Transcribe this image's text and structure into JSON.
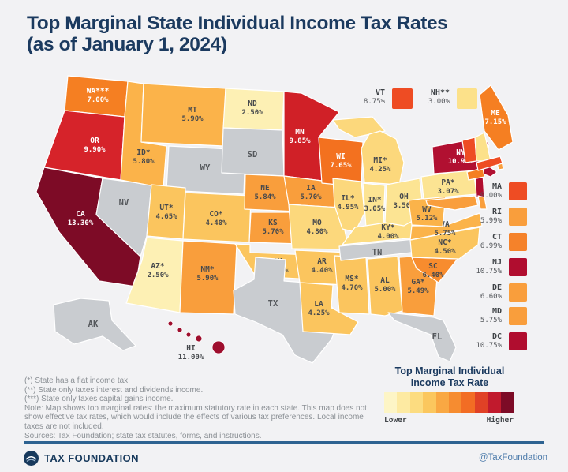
{
  "title": {
    "line1": "Top Marginal State Individual Income Tax Rates",
    "line2": "(as of January 1, 2024)"
  },
  "colors": {
    "background": "#f2f2f4",
    "title_navy": "#1b3a5f",
    "no_tax_gray": "#c9ccd0",
    "state_border": "#ffffff",
    "label_dark": "#46494d",
    "label_light": "#ffffff",
    "gray_label": "#55585c",
    "footer_line": "#2e6391",
    "handle_blue": "#4e7cab"
  },
  "map": {
    "states": [
      {
        "id": "WA",
        "label": "WA***",
        "rate": "7.00%",
        "color": "#f57f22",
        "text": "light"
      },
      {
        "id": "OR",
        "label": "OR",
        "rate": "9.90%",
        "color": "#d6232a",
        "text": "light"
      },
      {
        "id": "CA",
        "label": "CA",
        "rate": "13.30%",
        "color": "#7d0b26",
        "text": "light"
      },
      {
        "id": "NV",
        "label": "NV",
        "rate": "",
        "color": "#c9ccd0",
        "text": "gray"
      },
      {
        "id": "ID",
        "label": "ID*",
        "rate": "5.80%",
        "color": "#fbb34a",
        "text": "dark"
      },
      {
        "id": "MT",
        "label": "MT",
        "rate": "5.90%",
        "color": "#fbb34a",
        "text": "dark"
      },
      {
        "id": "WY",
        "label": "WY",
        "rate": "",
        "color": "#c9ccd0",
        "text": "gray"
      },
      {
        "id": "UT",
        "label": "UT*",
        "rate": "4.65%",
        "color": "#fbc55e",
        "text": "dark"
      },
      {
        "id": "CO",
        "label": "CO*",
        "rate": "4.40%",
        "color": "#fbc55e",
        "text": "dark"
      },
      {
        "id": "AZ",
        "label": "AZ*",
        "rate": "2.50%",
        "color": "#fdf0b4",
        "text": "dark"
      },
      {
        "id": "NM",
        "label": "NM*",
        "rate": "5.90%",
        "color": "#f99e3c",
        "text": "dark"
      },
      {
        "id": "ND",
        "label": "ND",
        "rate": "2.50%",
        "color": "#fdf0b4",
        "text": "dark"
      },
      {
        "id": "SD",
        "label": "SD",
        "rate": "",
        "color": "#c9ccd0",
        "text": "gray"
      },
      {
        "id": "NE",
        "label": "NE",
        "rate": "5.84%",
        "color": "#f99e3c",
        "text": "dark"
      },
      {
        "id": "KS",
        "label": "KS",
        "rate": "5.70%",
        "color": "#f99e3c",
        "text": "dark"
      },
      {
        "id": "OK",
        "label": "OK",
        "rate": "4.75%",
        "color": "#fbc55e",
        "text": "dark"
      },
      {
        "id": "TX",
        "label": "TX",
        "rate": "",
        "color": "#c9ccd0",
        "text": "gray"
      },
      {
        "id": "MN",
        "label": "MN",
        "rate": "9.85%",
        "color": "#d02027",
        "text": "light"
      },
      {
        "id": "IA",
        "label": "IA",
        "rate": "5.70%",
        "color": "#f99e3c",
        "text": "dark"
      },
      {
        "id": "MO",
        "label": "MO",
        "rate": "4.80%",
        "color": "#fcd87c",
        "text": "dark"
      },
      {
        "id": "AR",
        "label": "AR",
        "rate": "4.40%",
        "color": "#fbc55e",
        "text": "dark"
      },
      {
        "id": "LA",
        "label": "LA",
        "rate": "4.25%",
        "color": "#fbc55e",
        "text": "dark"
      },
      {
        "id": "WI",
        "label": "WI",
        "rate": "7.65%",
        "color": "#f3711f",
        "text": "light"
      },
      {
        "id": "IL",
        "label": "IL*",
        "rate": "4.95%",
        "color": "#fcd87c",
        "text": "dark"
      },
      {
        "id": "MS",
        "label": "MS*",
        "rate": "4.70%",
        "color": "#fbc55e",
        "text": "dark"
      },
      {
        "id": "MI",
        "label": "MI*",
        "rate": "4.25%",
        "color": "#fcd87c",
        "text": "dark"
      },
      {
        "id": "IN",
        "label": "IN*",
        "rate": "3.05%",
        "color": "#fce493",
        "text": "dark"
      },
      {
        "id": "KY",
        "label": "KY*",
        "rate": "4.00%",
        "color": "#fcdc82",
        "text": "dark"
      },
      {
        "id": "TN",
        "label": "TN",
        "rate": "",
        "color": "#c9ccd0",
        "text": "gray"
      },
      {
        "id": "AL",
        "label": "AL",
        "rate": "5.00%",
        "color": "#fbc55e",
        "text": "dark"
      },
      {
        "id": "OH",
        "label": "OH",
        "rate": "3.50%",
        "color": "#fce493",
        "text": "dark"
      },
      {
        "id": "GA",
        "label": "GA*",
        "rate": "5.49%",
        "color": "#f99e3c",
        "text": "dark"
      },
      {
        "id": "FL",
        "label": "FL",
        "rate": "",
        "color": "#c9ccd0",
        "text": "gray"
      },
      {
        "id": "SC",
        "label": "SC",
        "rate": "6.40%",
        "color": "#f78c2e",
        "text": "dark"
      },
      {
        "id": "NC",
        "label": "NC*",
        "rate": "4.50%",
        "color": "#fbc55e",
        "text": "dark"
      },
      {
        "id": "VA",
        "label": "VA",
        "rate": "5.75%",
        "color": "#fbb34a",
        "text": "dark"
      },
      {
        "id": "WV",
        "label": "WV",
        "rate": "5.12%",
        "color": "#fbb34a",
        "text": "dark"
      },
      {
        "id": "PA",
        "label": "PA*",
        "rate": "3.07%",
        "color": "#fce493",
        "text": "dark"
      },
      {
        "id": "NY",
        "label": "NY",
        "rate": "10.90%",
        "color": "#b11031",
        "text": "light"
      },
      {
        "id": "NJ",
        "label": "",
        "rate": "",
        "color": "#b00d2f",
        "text": "dark"
      },
      {
        "id": "MD",
        "label": "",
        "rate": "",
        "color": "#f99e3c",
        "text": "dark"
      },
      {
        "id": "DE",
        "label": "",
        "rate": "",
        "color": "#f99e3c",
        "text": "dark"
      },
      {
        "id": "VT",
        "label": "",
        "rate": "",
        "color": "#ee4c23",
        "text": "dark"
      },
      {
        "id": "NH",
        "label": "",
        "rate": "",
        "color": "#fce18a",
        "text": "dark"
      },
      {
        "id": "CT",
        "label": "",
        "rate": "",
        "color": "#f57f22",
        "text": "dark"
      },
      {
        "id": "RI",
        "label": "",
        "rate": "",
        "color": "#f99e3c",
        "text": "dark"
      },
      {
        "id": "MA",
        "label": "",
        "rate": "",
        "color": "#ee4c23",
        "text": "dark"
      },
      {
        "id": "ME",
        "label": "ME",
        "rate": "7.15%",
        "color": "#f57f22",
        "text": "light"
      },
      {
        "id": "AK",
        "label": "AK",
        "rate": "",
        "color": "#c9ccd0",
        "text": "gray"
      },
      {
        "id": "HI",
        "label": "HI",
        "rate": "11.00%",
        "color": "#9e0e2d",
        "text": "dark"
      }
    ]
  },
  "callouts_top": [
    {
      "label": "VT",
      "rate": "8.75%",
      "color": "#ee4c23"
    },
    {
      "label": "NH**",
      "rate": "3.00%",
      "color": "#fce18a"
    }
  ],
  "callouts_right": [
    {
      "label": "MA",
      "rate": "9.00%",
      "color": "#ee4c23"
    },
    {
      "label": "RI",
      "rate": "5.99%",
      "color": "#f99e3c"
    },
    {
      "label": "CT",
      "rate": "6.99%",
      "color": "#f5822a"
    },
    {
      "label": "NJ",
      "rate": "10.75%",
      "color": "#b00d2f"
    },
    {
      "label": "DE",
      "rate": "6.60%",
      "color": "#f99e3c"
    },
    {
      "label": "MD",
      "rate": "5.75%",
      "color": "#f99e3c"
    },
    {
      "label": "DC",
      "rate": "10.75%",
      "color": "#b00d2f"
    }
  ],
  "footnotes": [
    "(*) State has a flat income tax.",
    "(**) State only taxes interest and dividends income.",
    "(***) State only taxes capital gains income.",
    "Note: Map shows top marginal rates: the maximum statutory rate in each state. This map does not show effective tax rates, which would include the effects of various tax preferences. Local income taxes are not included.",
    "Sources: Tax Foundation; state tax statutes, forms, and instructions."
  ],
  "legend": {
    "title_line1": "Top Marginal Individual",
    "title_line2": "Income Tax Rate",
    "lower": "Lower",
    "higher": "Higher",
    "swatches": [
      "#fdf5c6",
      "#fdeaa2",
      "#fcdc80",
      "#fbc75e",
      "#f9a843",
      "#f68c30",
      "#f26d24",
      "#e04126",
      "#c11a2d",
      "#7d0b26"
    ]
  },
  "footer": {
    "brand": "TAX FOUNDATION",
    "handle": "@TaxFoundation",
    "logo_icon": "tax-foundation-globe-icon"
  }
}
